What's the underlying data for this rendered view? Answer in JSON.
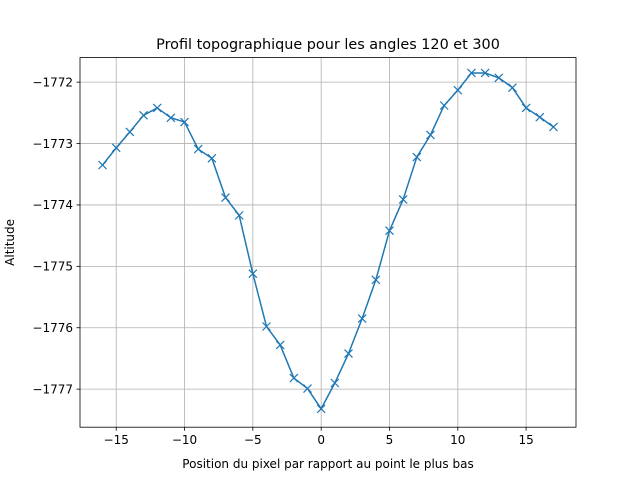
{
  "chart_data": {
    "type": "line",
    "title": "Profil topographique pour les angles 120 et 300",
    "xlabel": "Position du pixel par rapport au point le plus bas",
    "ylabel": "Altitude",
    "xlim": [
      -17.65,
      18.65
    ],
    "ylim": [
      -1777.62,
      -1771.6
    ],
    "xticks": [
      -15,
      -10,
      -5,
      0,
      5,
      10,
      15
    ],
    "xtick_labels": [
      "−15",
      "−10",
      "−5",
      "0",
      "5",
      "10",
      "15"
    ],
    "yticks": [
      -1772,
      -1773,
      -1774,
      -1775,
      -1776,
      -1777
    ],
    "ytick_labels": [
      "−1772",
      "−1773",
      "−1774",
      "−1775",
      "−1776",
      "−1777"
    ],
    "grid": true,
    "marker": "x",
    "color": "#1f77b4",
    "x": [
      -16,
      -15,
      -14,
      -13,
      -12,
      -11,
      -10,
      -9,
      -8,
      -7,
      -6,
      -5,
      -4,
      -3,
      -2,
      -1,
      0,
      1,
      2,
      3,
      4,
      5,
      6,
      7,
      8,
      9,
      10,
      11,
      12,
      13,
      14,
      15,
      16,
      17
    ],
    "y": [
      -1773.35,
      -1773.07,
      -1772.81,
      -1772.54,
      -1772.42,
      -1772.58,
      -1772.65,
      -1773.09,
      -1773.24,
      -1773.88,
      -1774.17,
      -1775.12,
      -1775.98,
      -1776.28,
      -1776.82,
      -1776.99,
      -1777.32,
      -1776.9,
      -1776.42,
      -1775.85,
      -1775.22,
      -1774.42,
      -1773.91,
      -1773.22,
      -1772.86,
      -1772.38,
      -1772.13,
      -1771.85,
      -1771.85,
      -1771.93,
      -1772.09,
      -1772.42,
      -1772.57,
      -1772.73
    ]
  }
}
